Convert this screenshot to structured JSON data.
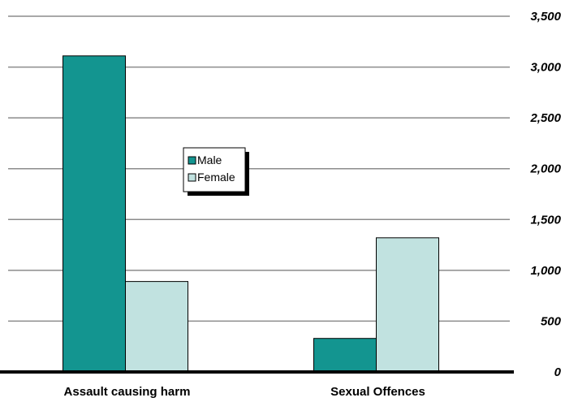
{
  "chart_data": {
    "type": "bar",
    "categories": [
      "Assault causing harm",
      "Sexual Offences"
    ],
    "series": [
      {
        "name": "Male",
        "values": [
          3110,
          330
        ],
        "color": "#139590"
      },
      {
        "name": "Female",
        "values": [
          890,
          1320
        ],
        "color": "#c1e2e0"
      }
    ],
    "ylim": [
      0,
      3500
    ],
    "yticks": [
      0,
      500,
      1000,
      1500,
      2000,
      2500,
      3000,
      3500
    ],
    "ytick_labels": [
      "0",
      "500",
      "1,000",
      "1,500",
      "2,000",
      "2,500",
      "3,000",
      "3,500"
    ],
    "y_axis_side": "right",
    "grid": true,
    "legend_position": "center"
  }
}
